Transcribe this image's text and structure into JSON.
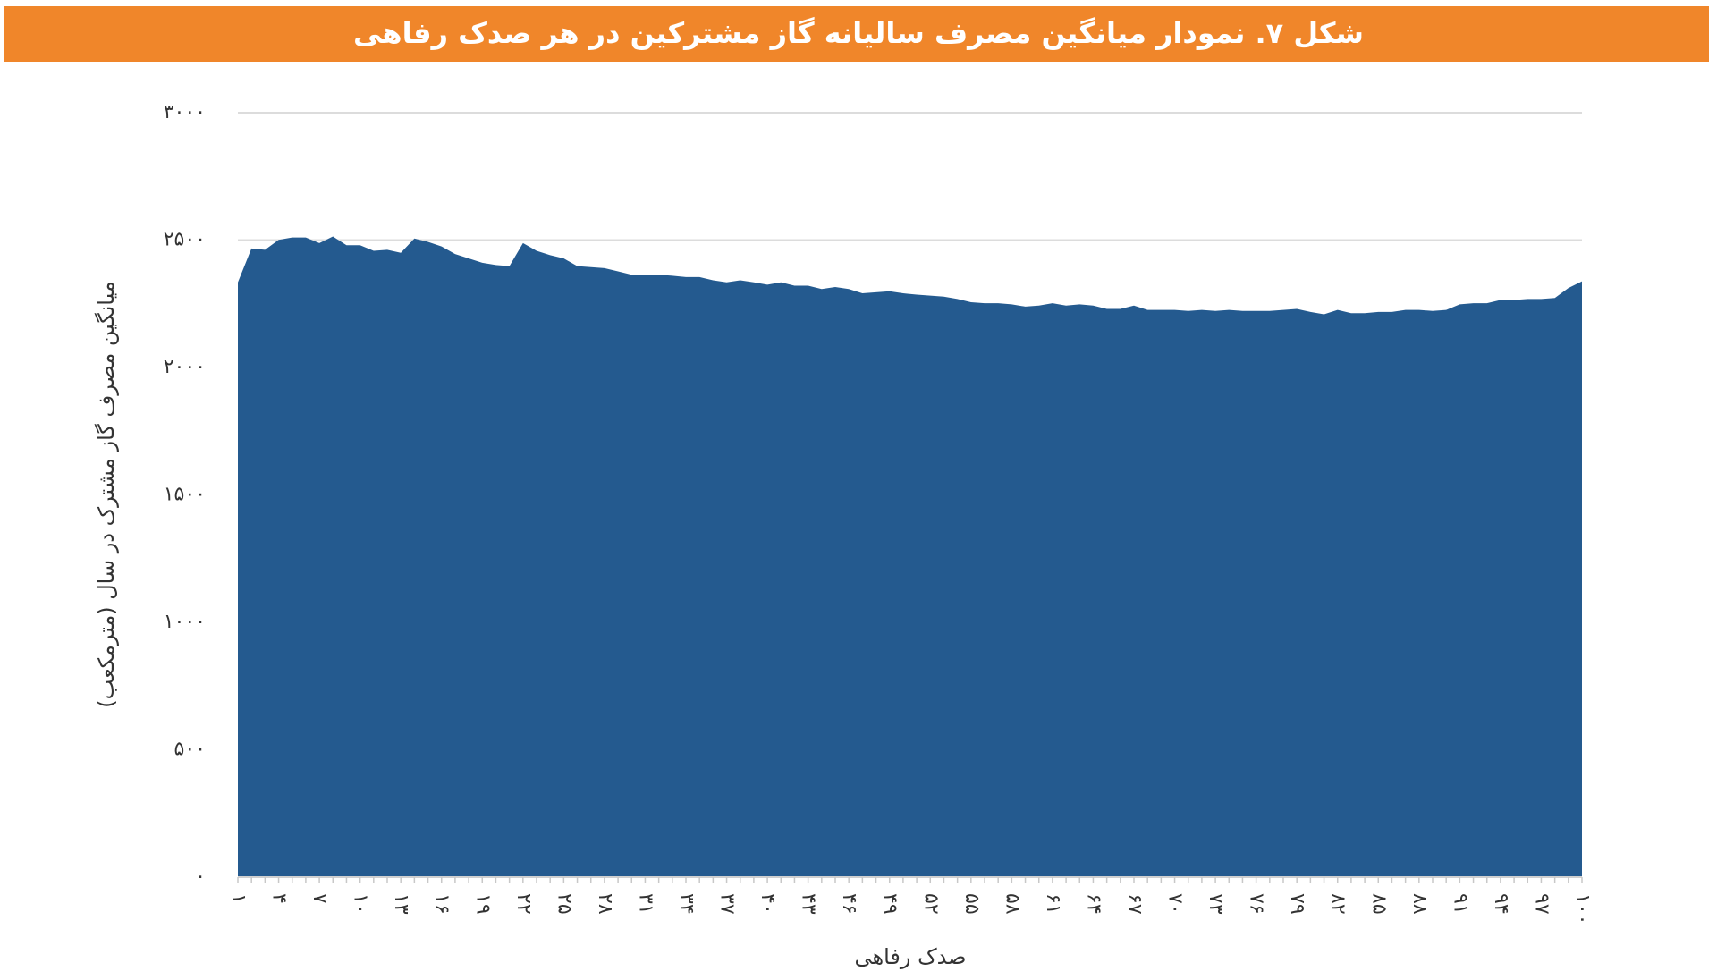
{
  "chart_data": {
    "type": "area",
    "title": "شکل ۷. نمودار میانگین مصرف سالیانه گاز مشترکین در هر صدک رفاهی",
    "x_label": "صدک رفاهی",
    "y_label": "میانگین مصرف گاز مشترک در سال (مترمکعب)",
    "color": "#245a8f",
    "grid": true,
    "ylim": [
      0,
      3000
    ],
    "yticks": [
      {
        "value": 0,
        "label": "۰"
      },
      {
        "value": 500,
        "label": "۵۰۰"
      },
      {
        "value": 1000,
        "label": "۱۰۰۰"
      },
      {
        "value": 1500,
        "label": "۱۵۰۰"
      },
      {
        "value": 2000,
        "label": "۲۰۰۰"
      },
      {
        "value": 2500,
        "label": "۲۵۰۰"
      },
      {
        "value": 3000,
        "label": "۳۰۰۰"
      }
    ],
    "categories": [
      "۱",
      null,
      null,
      "۴",
      null,
      null,
      "۷",
      null,
      null,
      "۱۰",
      null,
      null,
      "۱۳",
      null,
      null,
      "۱۶",
      null,
      null,
      "۱۹",
      null,
      null,
      "۲۲",
      null,
      null,
      "۲۵",
      null,
      null,
      "۲۸",
      null,
      null,
      "۳۱",
      null,
      null,
      "۳۴",
      null,
      null,
      "۳۷",
      null,
      null,
      "۴۰",
      null,
      null,
      "۴۳",
      null,
      null,
      "۴۶",
      null,
      null,
      "۴۹",
      null,
      null,
      "۵۲",
      null,
      null,
      "۵۵",
      null,
      null,
      "۵۸",
      null,
      null,
      "۶۱",
      null,
      null,
      "۶۴",
      null,
      null,
      "۶۷",
      null,
      null,
      "۷۰",
      null,
      null,
      "۷۳",
      null,
      null,
      "۷۶",
      null,
      null,
      "۷۹",
      null,
      null,
      "۸۲",
      null,
      null,
      "۸۵",
      null,
      null,
      "۸۸",
      null,
      null,
      "۹۱",
      null,
      null,
      "۹۴",
      null,
      null,
      "۹۷",
      null,
      null,
      "۱۰۰"
    ],
    "values": [
      2334,
      2467,
      2462,
      2501,
      2510,
      2510,
      2488,
      2514,
      2480,
      2480,
      2458,
      2462,
      2450,
      2506,
      2493,
      2475,
      2445,
      2428,
      2411,
      2402,
      2398,
      2488,
      2458,
      2441,
      2428,
      2398,
      2394,
      2390,
      2377,
      2364,
      2364,
      2364,
      2360,
      2355,
      2355,
      2342,
      2334,
      2342,
      2334,
      2325,
      2334,
      2321,
      2321,
      2308,
      2316,
      2308,
      2291,
      2295,
      2299,
      2291,
      2286,
      2282,
      2278,
      2269,
      2256,
      2252,
      2252,
      2248,
      2239,
      2243,
      2252,
      2243,
      2248,
      2243,
      2230,
      2230,
      2243,
      2226,
      2226,
      2226,
      2222,
      2226,
      2222,
      2226,
      2222,
      2222,
      2222,
      2226,
      2230,
      2218,
      2209,
      2226,
      2213,
      2213,
      2218,
      2218,
      2226,
      2226,
      2222,
      2226,
      2248,
      2252,
      2252,
      2265,
      2265,
      2269,
      2269,
      2273,
      2312,
      2338
    ]
  }
}
